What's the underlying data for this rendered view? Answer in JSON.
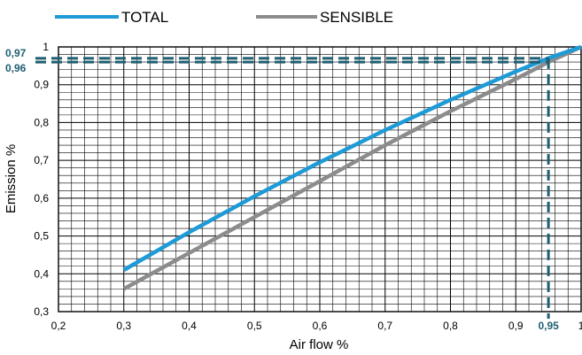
{
  "chart_data": {
    "type": "line",
    "title": "",
    "xlabel": "Air flow %",
    "ylabel": "Emission %",
    "xlim": [
      0.2,
      1.0
    ],
    "ylim": [
      0.3,
      1.0
    ],
    "x_ticks": [
      "0,2",
      "0,3",
      "0,4",
      "0,5",
      "0,6",
      "0,7",
      "0,8",
      "0,9",
      "1"
    ],
    "y_ticks": [
      "0,3",
      "0,4",
      "0,5",
      "0,6",
      "0,7",
      "0,8",
      "0,9",
      "1"
    ],
    "grid": true,
    "legend_position": "top",
    "series": [
      {
        "name": "TOTAL",
        "color": "#1e9ad6",
        "x": [
          0.3,
          0.4,
          0.5,
          0.6,
          0.7,
          0.8,
          0.9,
          0.95,
          1.0
        ],
        "y": [
          0.41,
          0.51,
          0.605,
          0.695,
          0.78,
          0.86,
          0.935,
          0.97,
          1.0
        ]
      },
      {
        "name": "SENSIBLE",
        "color": "#8c8c8c",
        "x": [
          0.3,
          0.4,
          0.5,
          0.6,
          0.7,
          0.8,
          0.9,
          0.95,
          1.0
        ],
        "y": [
          0.36,
          0.455,
          0.55,
          0.645,
          0.74,
          0.83,
          0.915,
          0.96,
          1.0
        ]
      }
    ],
    "annotations": {
      "color": "#1f5f73",
      "x_marker": {
        "value": 0.95,
        "label": "0,95"
      },
      "y_markers": [
        {
          "value": 0.97,
          "label": "0,97"
        },
        {
          "value": 0.96,
          "label": "0,96"
        }
      ]
    }
  }
}
